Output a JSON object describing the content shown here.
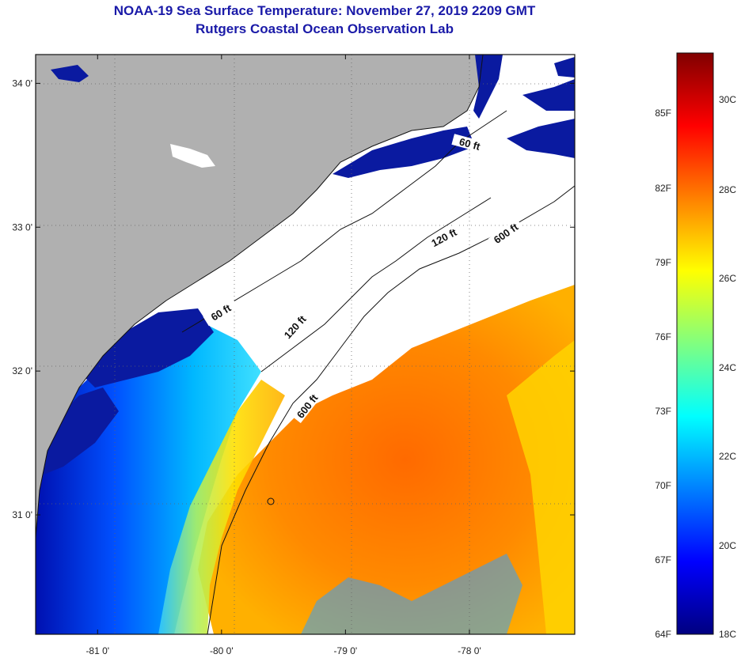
{
  "header": {
    "title": "NOAA-19 Sea Surface Temperature:  November 27, 2019 2209 GMT",
    "subtitle": "Rutgers Coastal Ocean Observation Lab"
  },
  "map": {
    "lon_range": [
      -81.5,
      -77.15
    ],
    "lat_range": [
      30.17,
      34.2
    ],
    "lat_ticks": [
      {
        "value": 34.0,
        "label": "34 0'"
      },
      {
        "value": 33.0,
        "label": "33 0'"
      },
      {
        "value": 32.0,
        "label": "32 0'"
      },
      {
        "value": 31.0,
        "label": "31 0'"
      }
    ],
    "lon_ticks": [
      {
        "value": -81.0,
        "label": "-81 0'"
      },
      {
        "value": -80.0,
        "label": "-80 0'"
      },
      {
        "value": -79.0,
        "label": "-79 0'"
      },
      {
        "value": -78.0,
        "label": "-78 0'"
      }
    ],
    "contours": [
      {
        "label": "60 ft",
        "lon": -78.0,
        "lat": 33.57,
        "angle": 15
      },
      {
        "label": "60 ft",
        "lon": -80.0,
        "lat": 32.4,
        "angle": -32
      },
      {
        "label": "120 ft",
        "lon": -78.2,
        "lat": 32.92,
        "angle": -28
      },
      {
        "label": "120 ft",
        "lon": -79.4,
        "lat": 32.3,
        "angle": -48
      },
      {
        "label": "600 ft",
        "lon": -77.7,
        "lat": 32.95,
        "angle": -35
      },
      {
        "label": "600 ft",
        "lon": -79.3,
        "lat": 31.75,
        "angle": -52
      }
    ],
    "colors": {
      "land": "#b0b0b0",
      "cloud": "#ffffff",
      "frame": "#111111"
    }
  },
  "colorbar": {
    "f_labels": [
      "85F",
      "82F",
      "79F",
      "76F",
      "73F",
      "70F",
      "67F",
      "64F"
    ],
    "c_labels": [
      "30C",
      "28C",
      "26C",
      "24C",
      "22C",
      "20C",
      "18C"
    ],
    "stops": [
      "#000080",
      "#0000ff",
      "#0080ff",
      "#00ffff",
      "#80ff80",
      "#ffff00",
      "#ff8000",
      "#ff0000",
      "#800000"
    ]
  }
}
